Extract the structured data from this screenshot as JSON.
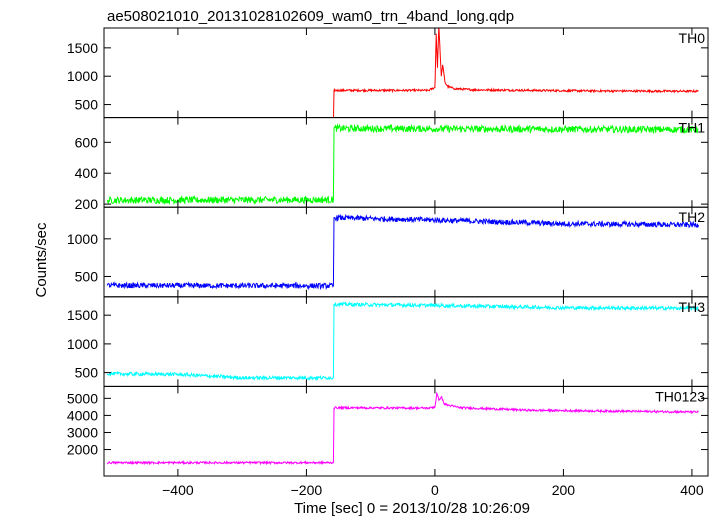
{
  "chart_data": {
    "type": "line",
    "title": "ae508021010_20131028102609_wam0_trn_4band_long.qdp",
    "xlabel": "Time [sec] 0 = 2013/10/28 10:26:09",
    "ylabel": "Counts/sec",
    "xlim": [
      -515,
      425
    ],
    "xticks": [
      -400,
      -200,
      0,
      200,
      400
    ],
    "x_tick_labels": [
      "−400",
      "−200",
      "0",
      "200",
      "400"
    ],
    "grid": false,
    "legend": "none",
    "panels": [
      {
        "name": "TH0",
        "color": "#ff0000",
        "ylim": [
          270,
          1850
        ],
        "yticks": [
          500,
          1000,
          1500
        ],
        "points": [
          [
            -510,
            160
          ],
          [
            -158,
            165
          ],
          [
            -157,
            750
          ],
          [
            -10,
            750
          ],
          [
            0,
            800
          ],
          [
            2,
            1750
          ],
          [
            4,
            1150
          ],
          [
            6,
            1900
          ],
          [
            10,
            1000
          ],
          [
            12,
            1200
          ],
          [
            16,
            880
          ],
          [
            20,
            820
          ],
          [
            30,
            780
          ],
          [
            60,
            760
          ],
          [
            150,
            750
          ],
          [
            250,
            740
          ],
          [
            410,
            735
          ]
        ],
        "noise": 18
      },
      {
        "name": "TH1",
        "color": "#00ff00",
        "ylim": [
          180,
          760
        ],
        "yticks": [
          200,
          400,
          600
        ],
        "points": [
          [
            -510,
            225
          ],
          [
            -158,
            228
          ],
          [
            -157,
            690
          ],
          [
            410,
            682
          ]
        ],
        "noise": 22
      },
      {
        "name": "TH2",
        "color": "#0000ff",
        "ylim": [
          230,
          1420
        ],
        "yticks": [
          500,
          1000
        ],
        "points": [
          [
            -510,
            380
          ],
          [
            -158,
            375
          ],
          [
            -157,
            1280
          ],
          [
            0,
            1250
          ],
          [
            200,
            1200
          ],
          [
            410,
            1185
          ]
        ],
        "noise": 35
      },
      {
        "name": "TH3",
        "color": "#00ffff",
        "ylim": [
          260,
          1820
        ],
        "yticks": [
          500,
          1000,
          1500
        ],
        "points": [
          [
            -510,
            480
          ],
          [
            -400,
            470
          ],
          [
            -300,
            410
          ],
          [
            -158,
            410
          ],
          [
            -157,
            1690
          ],
          [
            0,
            1670
          ],
          [
            200,
            1630
          ],
          [
            410,
            1620
          ]
        ],
        "noise": 30
      },
      {
        "name": "TH0123",
        "color": "#ff00ff",
        "ylim": [
          450,
          5700
        ],
        "yticks": [
          2000,
          3000,
          4000,
          5000
        ],
        "points": [
          [
            -510,
            1230
          ],
          [
            -158,
            1230
          ],
          [
            -157,
            4450
          ],
          [
            -10,
            4430
          ],
          [
            0,
            4500
          ],
          [
            3,
            5300
          ],
          [
            6,
            4900
          ],
          [
            10,
            5100
          ],
          [
            14,
            4700
          ],
          [
            20,
            4600
          ],
          [
            40,
            4450
          ],
          [
            150,
            4300
          ],
          [
            410,
            4200
          ]
        ],
        "noise": 60
      }
    ]
  }
}
